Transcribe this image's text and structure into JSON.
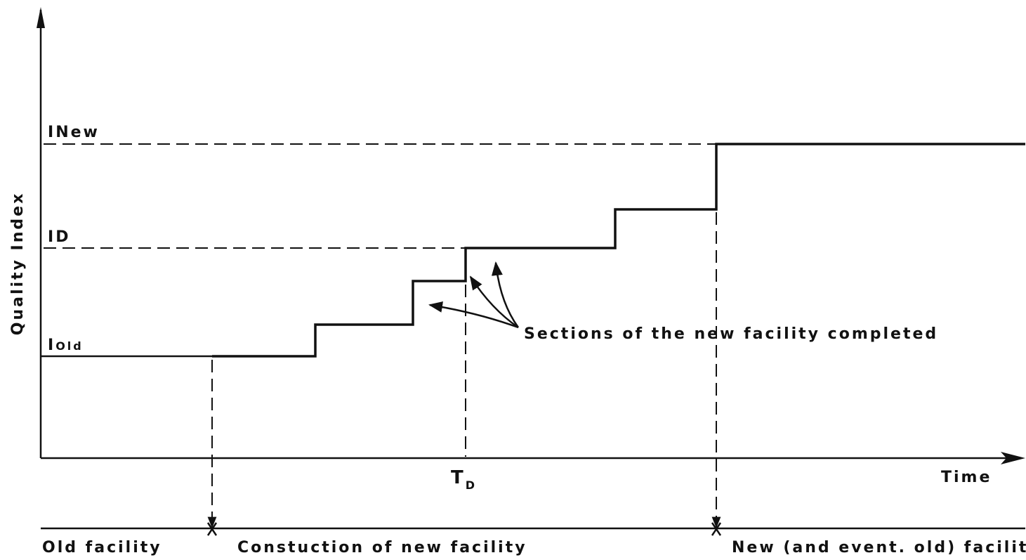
{
  "y_axis_label": "Quality Index",
  "x_axis_label": "Time",
  "levels": [
    {
      "symbol": "I",
      "subscript": "New"
    },
    {
      "symbol": "I",
      "subscript": "D"
    },
    {
      "symbol": "I",
      "subscript": "Old"
    }
  ],
  "time_marker": {
    "symbol": "T",
    "subscript": "D"
  },
  "annotation": "Sections of the new facility completed",
  "phases": [
    "Old facility",
    "Constuction of new facility",
    "New (and event. old) facility"
  ]
}
